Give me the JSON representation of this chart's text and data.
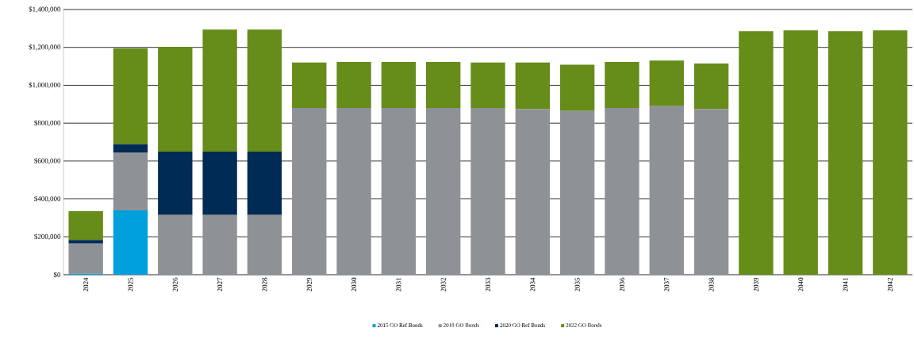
{
  "chart_data": {
    "type": "bar",
    "stacked": true,
    "categories": [
      "2024",
      "2025",
      "2026",
      "2027",
      "2028",
      "2029",
      "2030",
      "2031",
      "2032",
      "2033",
      "2034",
      "2035",
      "2036",
      "2037",
      "2038",
      "2039",
      "2040",
      "2041",
      "2042"
    ],
    "series": [
      {
        "name": "2015 GO Ref Bonds",
        "color": "#00a0dc",
        "values": [
          5000,
          340000,
          0,
          0,
          0,
          0,
          0,
          0,
          0,
          0,
          0,
          0,
          0,
          0,
          0,
          0,
          0,
          0,
          0
        ]
      },
      {
        "name": "2018 GO Bonds",
        "color": "#8e9196",
        "values": [
          160000,
          305000,
          315000,
          315000,
          315000,
          880000,
          880000,
          880000,
          880000,
          880000,
          875000,
          865000,
          880000,
          890000,
          875000,
          0,
          0,
          0,
          0
        ]
      },
      {
        "name": "2020 GO Ref Bonds",
        "color": "#002b54",
        "values": [
          18000,
          44000,
          335000,
          335000,
          335000,
          0,
          0,
          0,
          0,
          0,
          0,
          0,
          0,
          0,
          0,
          0,
          0,
          0,
          0
        ]
      },
      {
        "name": "2022 GO Bonds",
        "color": "#668c1a",
        "values": [
          152000,
          507000,
          553000,
          644000,
          644000,
          240000,
          243000,
          243000,
          243000,
          240000,
          245000,
          244000,
          243000,
          241000,
          240000,
          1286000,
          1290000,
          1286000,
          1290000
        ]
      }
    ],
    "ylim": [
      0,
      1400000
    ],
    "yticks": [
      {
        "value": 0,
        "label": "$0"
      },
      {
        "value": 200000,
        "label": "$200,000"
      },
      {
        "value": 400000,
        "label": "$400,000"
      },
      {
        "value": 600000,
        "label": "$600,000"
      },
      {
        "value": 800000,
        "label": "$800,000"
      },
      {
        "value": 1000000,
        "label": "$1,000,000"
      },
      {
        "value": 1200000,
        "label": "$1,200,000"
      },
      {
        "value": 1400000,
        "label": "$1,400,000"
      }
    ],
    "grid": "y",
    "legend": "bottom"
  }
}
